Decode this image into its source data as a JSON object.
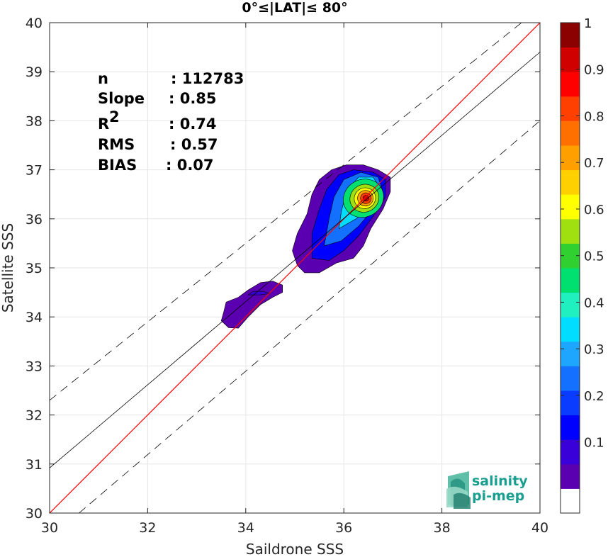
{
  "chart_data": {
    "type": "heatmap",
    "title": "0°≤|LAT|≤ 80°",
    "xlabel": "Saildrone SSS",
    "ylabel": "Satellite SSS",
    "xlim": [
      30,
      40
    ],
    "ylim": [
      30,
      40
    ],
    "xticks": [
      "30",
      "32",
      "34",
      "36",
      "38",
      "40"
    ],
    "yticks": [
      "30",
      "31",
      "32",
      "33",
      "34",
      "35",
      "36",
      "37",
      "38",
      "39",
      "40"
    ],
    "grid": true,
    "stats": [
      {
        "key": "n",
        "value": ": 112783"
      },
      {
        "key": "Slope",
        "value": ": 0.85"
      },
      {
        "key": "R",
        "sup": "2",
        "value": ": 0.74"
      },
      {
        "key": "RMS",
        "value": ": 0.57"
      },
      {
        "key": "BIAS",
        "value": ": 0.07"
      }
    ],
    "lines": {
      "one_to_one": {
        "color": "#ff0000",
        "slope": 1,
        "intercept": 0
      },
      "fit": {
        "color": "#000000",
        "slope": 0.85,
        "points": [
          [
            30,
            30.92
          ],
          [
            40,
            39.4
          ]
        ]
      },
      "bounds_upper": {
        "style": "dashed",
        "points": [
          [
            30,
            32.3
          ],
          [
            40,
            40.3
          ]
        ]
      },
      "bounds_lower": {
        "style": "dashed",
        "points": [
          [
            30.6,
            30
          ],
          [
            40,
            38
          ]
        ]
      }
    },
    "density_peak": {
      "x": 36.45,
      "y": 36.42,
      "value": 1.0
    },
    "colorbar": {
      "range": [
        0,
        1
      ],
      "ticks": [
        "0.1",
        "0.2",
        "0.3",
        "0.4",
        "0.5",
        "0.6",
        "0.7",
        "0.8",
        "0.9",
        "1"
      ],
      "colors": [
        "#ffffff",
        "#5a00b0",
        "#3a00d9",
        "#0000ff",
        "#0a3cff",
        "#1470ff",
        "#1ea6ff",
        "#00ddff",
        "#20f0c0",
        "#00e070",
        "#30d030",
        "#a0e010",
        "#ffff00",
        "#ffd000",
        "#ffa000",
        "#ff7000",
        "#ff4000",
        "#ff0000",
        "#d00000",
        "#8b0000"
      ]
    }
  },
  "logo": {
    "line1": "salinity",
    "line2": "pi-mep"
  }
}
